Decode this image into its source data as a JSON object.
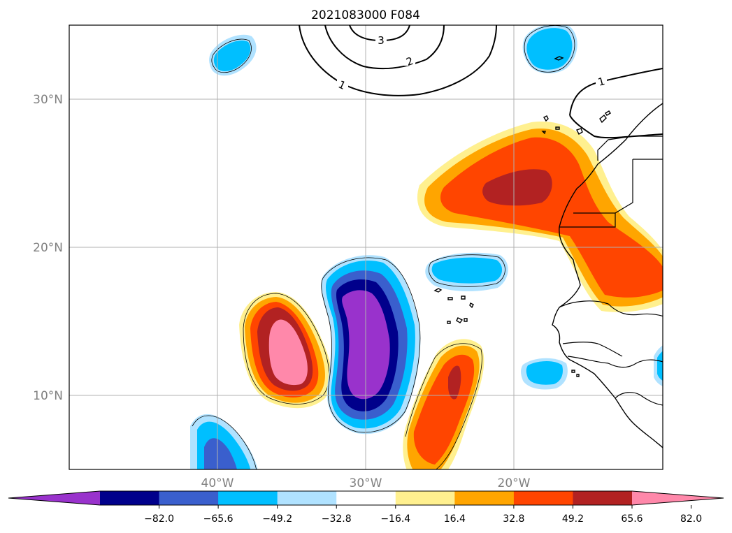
{
  "title": "2021083000 F084",
  "lat_labels": [
    "30°N",
    "20°N",
    "10°N"
  ],
  "lon_labels": [
    "40°W",
    "30°W",
    "20°W"
  ],
  "contour_labels": [
    "3",
    "2",
    "1",
    "1"
  ],
  "colorbar": {
    "tick_labels": [
      "−82.0",
      "−65.6",
      "−49.2",
      "−32.8",
      "−16.4",
      "16.4",
      "32.8",
      "49.2",
      "65.6",
      "82.0"
    ],
    "colors": [
      "#9932cc",
      "#00008b",
      "#3a5fcd",
      "#00bfff",
      "#b0e2ff",
      "#ffffff",
      "#fff08f",
      "#ffa500",
      "#ff4500",
      "#b22222",
      "#ff88aa"
    ],
    "extend": "both"
  },
  "map": {
    "projection": "PlateCarree",
    "lon_range": [
      -50,
      -10
    ],
    "lat_range": [
      5,
      35
    ],
    "gridlines": true
  }
}
